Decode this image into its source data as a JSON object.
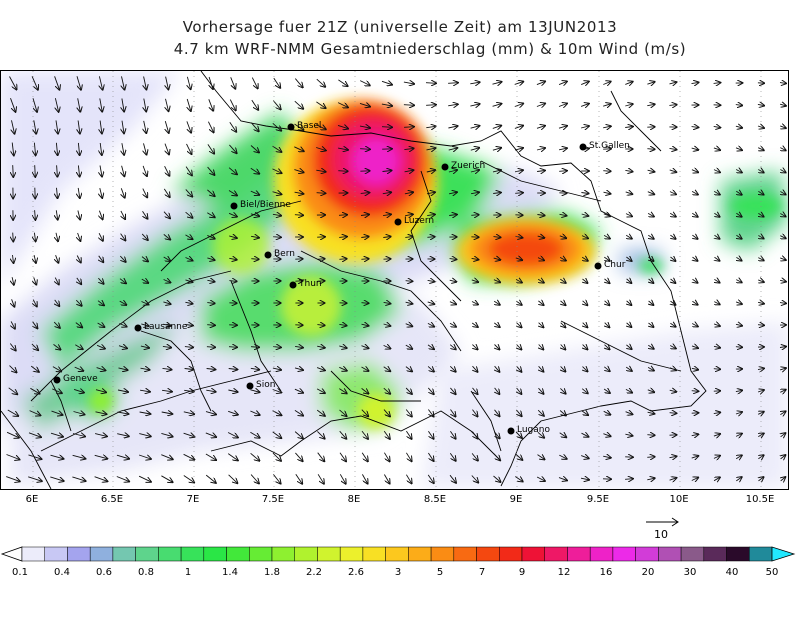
{
  "title": {
    "line1": "Vorhersage fuer 21Z (universelle Zeit) am 13JUN2013",
    "line2": "4.7 km WRF-NMM Gesamtniederschlag (mm) & 10m Wind (m/s)"
  },
  "map": {
    "x_axis_ticks": [
      "6E",
      "6.5E",
      "7E",
      "7.5E",
      "8E",
      "8.5E",
      "9E",
      "9.5E",
      "10E",
      "10.5E"
    ],
    "cities": [
      {
        "name": "Basel"
      },
      {
        "name": "Zuerich"
      },
      {
        "name": "St.Gallen"
      },
      {
        "name": "Biel/Bienne"
      },
      {
        "name": "Luzern"
      },
      {
        "name": "Bern"
      },
      {
        "name": "Chur"
      },
      {
        "name": "Thun"
      },
      {
        "name": "Lausanne"
      },
      {
        "name": "Geneve"
      },
      {
        "name": "Sion"
      },
      {
        "name": "Lugano"
      }
    ],
    "reference_vector": {
      "label": "10",
      "value": 10,
      "unit": "m/s"
    }
  },
  "legend": {
    "labels": [
      "0.1",
      "0.4",
      "0.6",
      "0.8",
      "1",
      "1.4",
      "1.8",
      "2.2",
      "2.6",
      "3",
      "5",
      "7",
      "9",
      "12",
      "16",
      "20",
      "30",
      "40",
      "50"
    ],
    "colors": [
      "#ececfa",
      "#c8c8f4",
      "#a4a4ee",
      "#8fb0de",
      "#74c7b0",
      "#5ed48c",
      "#48dc70",
      "#37e25a",
      "#2ae646",
      "#42e83a",
      "#66ec34",
      "#8ef030",
      "#b0f22e",
      "#d0f32e",
      "#ecf02c",
      "#f8e024",
      "#fcc81e",
      "#fcac18",
      "#fa8c14",
      "#f86a12",
      "#f44810",
      "#f22a18",
      "#ee1236",
      "#ee1866",
      "#ee1e9a",
      "#ee22c8",
      "#ec2ae8",
      "#d23cd8",
      "#b050b4",
      "#8a5a8a",
      "#5a2a5a",
      "#2a0a2a",
      "#208a9a"
    ],
    "end_left_color": "#ffffff",
    "end_right_color": "#22e8ff"
  }
}
